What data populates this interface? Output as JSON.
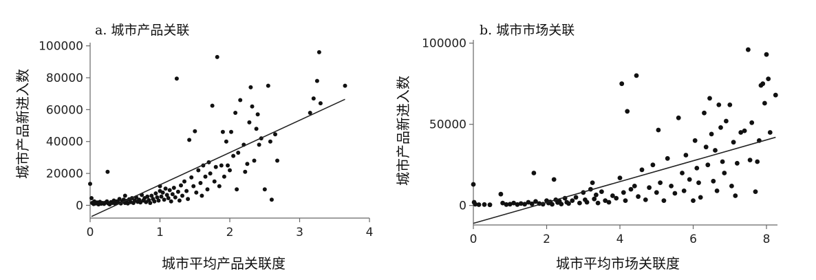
{
  "chart_data": [
    {
      "type": "scatter",
      "title": "a. 城市产品关联",
      "xlabel": "城市平均产品关联度",
      "ylabel": "城市产品新进入数",
      "xlim": [
        0,
        4
      ],
      "ylim": [
        -8000,
        102000
      ],
      "xticks": [
        0,
        1,
        2,
        3,
        4
      ],
      "yticks": [
        0,
        20000,
        40000,
        60000,
        80000,
        100000
      ],
      "xtick_labels": [
        "0",
        "1",
        "2",
        "3",
        "4"
      ],
      "ytick_labels": [
        "0",
        "20000",
        "40000",
        "60000",
        "80000",
        "100000"
      ],
      "grid": false,
      "fit_line": {
        "x": [
          0.02,
          3.65
        ],
        "y": [
          -7000,
          66500
        ]
      },
      "points": [
        [
          0.0,
          13500
        ],
        [
          0.02,
          4500
        ],
        [
          0.03,
          1500
        ],
        [
          0.05,
          800
        ],
        [
          0.06,
          2500
        ],
        [
          0.08,
          1200
        ],
        [
          0.1,
          1800
        ],
        [
          0.12,
          600
        ],
        [
          0.14,
          2200
        ],
        [
          0.16,
          1000
        ],
        [
          0.18,
          1500
        ],
        [
          0.2,
          900
        ],
        [
          0.22,
          1700
        ],
        [
          0.24,
          2500
        ],
        [
          0.25,
          21000
        ],
        [
          0.26,
          1200
        ],
        [
          0.28,
          600
        ],
        [
          0.3,
          2000
        ],
        [
          0.32,
          1500
        ],
        [
          0.34,
          3000
        ],
        [
          0.36,
          1000
        ],
        [
          0.38,
          2500
        ],
        [
          0.4,
          1800
        ],
        [
          0.42,
          4000
        ],
        [
          0.44,
          1200
        ],
        [
          0.46,
          2500
        ],
        [
          0.48,
          3500
        ],
        [
          0.5,
          1500
        ],
        [
          0.5,
          6000
        ],
        [
          0.52,
          2800
        ],
        [
          0.54,
          1200
        ],
        [
          0.56,
          3800
        ],
        [
          0.58,
          2000
        ],
        [
          0.6,
          4500
        ],
        [
          0.62,
          1500
        ],
        [
          0.64,
          3000
        ],
        [
          0.66,
          5000
        ],
        [
          0.68,
          2200
        ],
        [
          0.7,
          3500
        ],
        [
          0.72,
          1800
        ],
        [
          0.74,
          6500
        ],
        [
          0.76,
          3000
        ],
        [
          0.78,
          4500
        ],
        [
          0.8,
          2000
        ],
        [
          0.82,
          5500
        ],
        [
          0.84,
          3200
        ],
        [
          0.86,
          1500
        ],
        [
          0.88,
          6000
        ],
        [
          0.9,
          4000
        ],
        [
          0.92,
          2500
        ],
        [
          0.94,
          7500
        ],
        [
          0.96,
          5000
        ],
        [
          0.98,
          3000
        ],
        [
          1.0,
          9000
        ],
        [
          1.0,
          12000
        ],
        [
          1.02,
          5500
        ],
        [
          1.04,
          8000
        ],
        [
          1.06,
          3500
        ],
        [
          1.08,
          10500
        ],
        [
          1.1,
          6500
        ],
        [
          1.12,
          4500
        ],
        [
          1.14,
          9500
        ],
        [
          1.16,
          2500
        ],
        [
          1.18,
          7000
        ],
        [
          1.2,
          11000
        ],
        [
          1.22,
          5000
        ],
        [
          1.24,
          79500
        ],
        [
          1.26,
          8500
        ],
        [
          1.28,
          3000
        ],
        [
          1.3,
          12500
        ],
        [
          1.32,
          6000
        ],
        [
          1.35,
          15000
        ],
        [
          1.38,
          9000
        ],
        [
          1.4,
          4000
        ],
        [
          1.42,
          41000
        ],
        [
          1.45,
          17500
        ],
        [
          1.48,
          12000
        ],
        [
          1.5,
          46500
        ],
        [
          1.52,
          8000
        ],
        [
          1.55,
          22000
        ],
        [
          1.58,
          14000
        ],
        [
          1.6,
          6000
        ],
        [
          1.62,
          25000
        ],
        [
          1.65,
          18000
        ],
        [
          1.68,
          10000
        ],
        [
          1.7,
          27000
        ],
        [
          1.72,
          20000
        ],
        [
          1.75,
          62500
        ],
        [
          1.78,
          15000
        ],
        [
          1.8,
          24000
        ],
        [
          1.82,
          93000
        ],
        [
          1.85,
          12000
        ],
        [
          1.88,
          25000
        ],
        [
          1.9,
          46000
        ],
        [
          1.92,
          18000
        ],
        [
          1.95,
          40000
        ],
        [
          1.97,
          25000
        ],
        [
          2.0,
          22000
        ],
        [
          2.02,
          46000
        ],
        [
          2.05,
          31000
        ],
        [
          2.08,
          58000
        ],
        [
          2.1,
          10000
        ],
        [
          2.12,
          33000
        ],
        [
          2.15,
          66000
        ],
        [
          2.2,
          38000
        ],
        [
          2.22,
          21000
        ],
        [
          2.25,
          26000
        ],
        [
          2.28,
          52000
        ],
        [
          2.3,
          74000
        ],
        [
          2.32,
          62000
        ],
        [
          2.35,
          28000
        ],
        [
          2.38,
          48000
        ],
        [
          2.4,
          57000
        ],
        [
          2.42,
          38000
        ],
        [
          2.45,
          42000
        ],
        [
          2.5,
          10000
        ],
        [
          2.55,
          75000
        ],
        [
          2.58,
          40000
        ],
        [
          2.6,
          3500
        ],
        [
          2.65,
          44500
        ],
        [
          2.68,
          28000
        ],
        [
          3.15,
          58000
        ],
        [
          3.2,
          67000
        ],
        [
          3.25,
          78000
        ],
        [
          3.28,
          96000
        ],
        [
          3.3,
          64000
        ],
        [
          3.65,
          75000
        ]
      ]
    },
    {
      "type": "scatter",
      "title": "b. 城市市场关联",
      "xlabel": "城市平均市场关联度",
      "ylabel": "城市产品新进入数",
      "xlim": [
        0,
        8.3
      ],
      "ylim": [
        -12000,
        102000
      ],
      "xticks": [
        0,
        2,
        4,
        6,
        8
      ],
      "yticks": [
        0,
        50000,
        100000
      ],
      "xtick_labels": [
        "0",
        "2",
        "4",
        "6",
        "8"
      ],
      "ytick_labels": [
        "0",
        "50000",
        "100000"
      ],
      "grid": false,
      "fit_line": {
        "x": [
          0.0,
          8.25
        ],
        "y": [
          -11000,
          42000
        ]
      },
      "points": [
        [
          0.0,
          13000
        ],
        [
          0.02,
          2000
        ],
        [
          0.05,
          800
        ],
        [
          0.15,
          500
        ],
        [
          0.3,
          600
        ],
        [
          0.45,
          400
        ],
        [
          0.75,
          7000
        ],
        [
          0.8,
          1500
        ],
        [
          0.9,
          600
        ],
        [
          1.0,
          800
        ],
        [
          1.1,
          1500
        ],
        [
          1.2,
          600
        ],
        [
          1.3,
          1200
        ],
        [
          1.4,
          800
        ],
        [
          1.5,
          2000
        ],
        [
          1.6,
          1000
        ],
        [
          1.65,
          20000
        ],
        [
          1.7,
          2500
        ],
        [
          1.8,
          1200
        ],
        [
          1.9,
          800
        ],
        [
          2.0,
          3000
        ],
        [
          2.05,
          1500
        ],
        [
          2.1,
          2200
        ],
        [
          2.15,
          700
        ],
        [
          2.2,
          16000
        ],
        [
          2.25,
          3500
        ],
        [
          2.3,
          1800
        ],
        [
          2.35,
          2600
        ],
        [
          2.4,
          900
        ],
        [
          2.5,
          4500
        ],
        [
          2.55,
          2000
        ],
        [
          2.6,
          1200
        ],
        [
          2.7,
          3000
        ],
        [
          2.8,
          5000
        ],
        [
          2.9,
          1500
        ],
        [
          3.0,
          8000
        ],
        [
          3.05,
          3500
        ],
        [
          3.1,
          2000
        ],
        [
          3.2,
          10000
        ],
        [
          3.25,
          14000
        ],
        [
          3.3,
          4000
        ],
        [
          3.35,
          6500
        ],
        [
          3.4,
          1500
        ],
        [
          3.5,
          8500
        ],
        [
          3.6,
          3000
        ],
        [
          3.7,
          2000
        ],
        [
          3.8,
          6000
        ],
        [
          3.9,
          4500
        ],
        [
          4.0,
          17000
        ],
        [
          4.05,
          75000
        ],
        [
          4.1,
          8000
        ],
        [
          4.15,
          3000
        ],
        [
          4.2,
          58000
        ],
        [
          4.3,
          10000
        ],
        [
          4.4,
          12000
        ],
        [
          4.45,
          80000
        ],
        [
          4.5,
          5500
        ],
        [
          4.6,
          22000
        ],
        [
          4.7,
          3500
        ],
        [
          4.8,
          11000
        ],
        [
          4.9,
          25000
        ],
        [
          5.0,
          8000
        ],
        [
          5.05,
          46500
        ],
        [
          5.1,
          14000
        ],
        [
          5.2,
          3000
        ],
        [
          5.3,
          29000
        ],
        [
          5.4,
          12000
        ],
        [
          5.5,
          7500
        ],
        [
          5.6,
          54000
        ],
        [
          5.7,
          20000
        ],
        [
          5.75,
          9000
        ],
        [
          5.8,
          31000
        ],
        [
          5.9,
          16000
        ],
        [
          6.0,
          3000
        ],
        [
          6.05,
          40000
        ],
        [
          6.1,
          23000
        ],
        [
          6.15,
          14000
        ],
        [
          6.2,
          5000
        ],
        [
          6.3,
          57000
        ],
        [
          6.35,
          36000
        ],
        [
          6.4,
          25000
        ],
        [
          6.45,
          66000
        ],
        [
          6.5,
          44000
        ],
        [
          6.55,
          15000
        ],
        [
          6.6,
          34000
        ],
        [
          6.65,
          9000
        ],
        [
          6.7,
          62000
        ],
        [
          6.75,
          48000
        ],
        [
          6.8,
          27000
        ],
        [
          6.85,
          20000
        ],
        [
          6.9,
          52000
        ],
        [
          7.0,
          62000
        ],
        [
          7.05,
          12000
        ],
        [
          7.1,
          39000
        ],
        [
          7.15,
          6000
        ],
        [
          7.2,
          26000
        ],
        [
          7.3,
          45000
        ],
        [
          7.4,
          46000
        ],
        [
          7.5,
          96000
        ],
        [
          7.55,
          28000
        ],
        [
          7.6,
          51000
        ],
        [
          7.7,
          8500
        ],
        [
          7.75,
          27000
        ],
        [
          7.8,
          40000
        ],
        [
          7.85,
          74000
        ],
        [
          7.9,
          75000
        ],
        [
          7.95,
          63000
        ],
        [
          8.0,
          93000
        ],
        [
          8.05,
          78000
        ],
        [
          8.1,
          45000
        ],
        [
          8.25,
          68000
        ]
      ]
    }
  ]
}
